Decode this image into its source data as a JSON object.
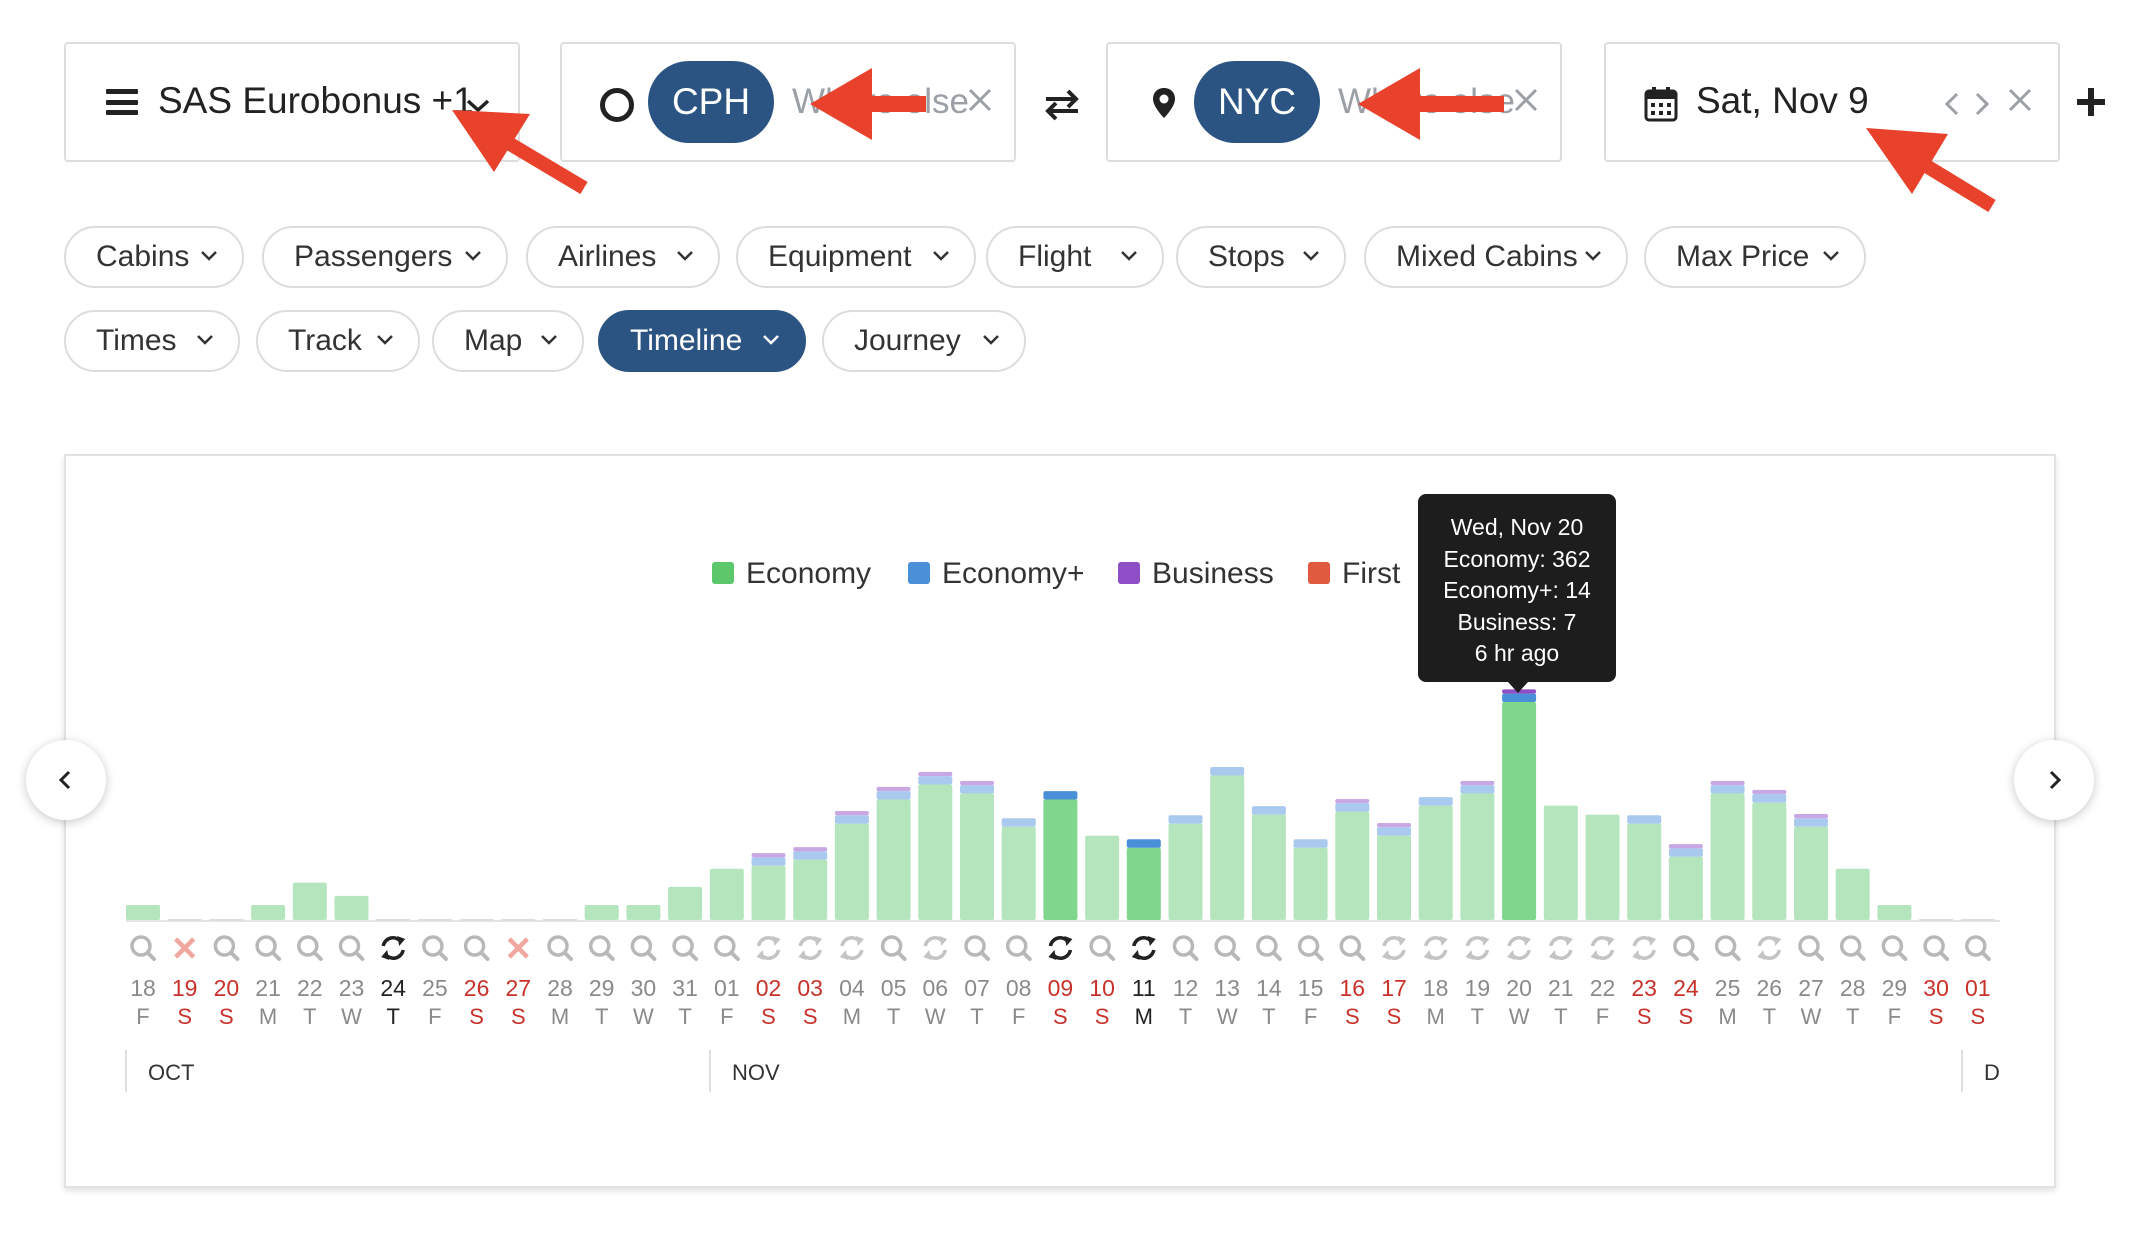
{
  "search_bar": {
    "program_label": "SAS Eurobonus +1",
    "origin_code": "CPH",
    "origin_placeholder": "Where else",
    "destination_code": "NYC",
    "destination_placeholder": "Where else",
    "date_label": "Sat, Nov 9"
  },
  "filters": {
    "row1": [
      "Cabins",
      "Passengers",
      "Airlines",
      "Equipment",
      "Flight",
      "Stops",
      "Mixed Cabins",
      "Max Price"
    ],
    "row2": [
      "Times",
      "Track",
      "Map",
      "Timeline",
      "Journey"
    ],
    "active": "Timeline"
  },
  "colors": {
    "economy": "#5cc86c",
    "economy_plus": "#4a90d9",
    "business": "#8e4fc6",
    "first": "#e05a3f",
    "accent": "#2c5482",
    "weekend": "#c8322b",
    "annotation": "#e8412c"
  },
  "legend": [
    {
      "label": "Economy",
      "color": "#5cc86c"
    },
    {
      "label": "Economy+",
      "color": "#4a90d9"
    },
    {
      "label": "Business",
      "color": "#8e4fc6"
    },
    {
      "label": "First",
      "color": "#e05a3f"
    }
  ],
  "tooltip": {
    "lines": [
      "Wed, Nov 20",
      "Economy: 362",
      "Economy+: 14",
      "Business: 7",
      "6 hr ago"
    ]
  },
  "months": [
    "OCT",
    "NOV",
    "D"
  ],
  "chart_data": {
    "type": "bar",
    "stacked": true,
    "categories": [
      "18",
      "19",
      "20",
      "21",
      "22",
      "23",
      "24",
      "25",
      "26",
      "27",
      "28",
      "29",
      "30",
      "31",
      "01",
      "02",
      "03",
      "04",
      "05",
      "06",
      "07",
      "08",
      "09",
      "10",
      "11",
      "12",
      "13",
      "14",
      "15",
      "16",
      "17",
      "18",
      "19",
      "20",
      "21",
      "22",
      "23",
      "24",
      "25",
      "26",
      "27",
      "28",
      "29",
      "30",
      "01"
    ],
    "weekdays": [
      "F",
      "S",
      "S",
      "M",
      "T",
      "W",
      "T",
      "F",
      "S",
      "S",
      "M",
      "T",
      "W",
      "T",
      "F",
      "S",
      "S",
      "M",
      "T",
      "W",
      "T",
      "F",
      "S",
      "S",
      "M",
      "T",
      "W",
      "T",
      "F",
      "S",
      "S",
      "M",
      "T",
      "W",
      "T",
      "F",
      "S",
      "S",
      "M",
      "T",
      "W",
      "T",
      "F",
      "S",
      "S"
    ],
    "weekend": [
      false,
      true,
      true,
      false,
      false,
      false,
      false,
      false,
      true,
      true,
      false,
      false,
      false,
      false,
      false,
      true,
      true,
      false,
      false,
      false,
      false,
      false,
      true,
      true,
      false,
      false,
      false,
      false,
      false,
      true,
      true,
      false,
      false,
      false,
      false,
      false,
      true,
      true,
      false,
      false,
      false,
      false,
      false,
      true,
      true
    ],
    "status": [
      "search",
      "unavailable",
      "search",
      "search",
      "search",
      "search",
      "refreshing",
      "search",
      "search",
      "unavailable",
      "search",
      "search",
      "search",
      "search",
      "search",
      "refresh",
      "refresh",
      "refresh",
      "search",
      "refresh",
      "search",
      "search",
      "refreshing",
      "search",
      "refreshing",
      "search",
      "search",
      "search",
      "search",
      "search",
      "refresh",
      "refresh",
      "refresh",
      "refresh",
      "refresh",
      "refresh",
      "refresh",
      "search",
      "search",
      "refresh",
      "search",
      "search",
      "search",
      "search",
      "search"
    ],
    "highlighted": [
      "22",
      "09",
      "11",
      "20"
    ],
    "series": [
      {
        "name": "Economy",
        "values": [
          25,
          0,
          0,
          25,
          62,
          40,
          0,
          0,
          0,
          0,
          0,
          25,
          25,
          55,
          85,
          90,
          100,
          160,
          200,
          225,
          210,
          155,
          200,
          140,
          120,
          160,
          240,
          175,
          120,
          180,
          140,
          190,
          210,
          362,
          190,
          175,
          160,
          105,
          210,
          195,
          155,
          85,
          25,
          0,
          0
        ]
      },
      {
        "name": "Economy+",
        "values": [
          0,
          0,
          0,
          0,
          0,
          0,
          0,
          0,
          0,
          0,
          0,
          0,
          0,
          0,
          0,
          14,
          14,
          14,
          14,
          14,
          14,
          14,
          14,
          0,
          14,
          14,
          14,
          14,
          14,
          14,
          14,
          14,
          14,
          14,
          0,
          0,
          14,
          14,
          14,
          14,
          14,
          0,
          0,
          0,
          0
        ]
      },
      {
        "name": "Business",
        "values": [
          0,
          0,
          0,
          0,
          0,
          0,
          0,
          0,
          0,
          0,
          0,
          0,
          0,
          0,
          0,
          7,
          7,
          7,
          7,
          7,
          7,
          0,
          0,
          0,
          0,
          0,
          0,
          0,
          0,
          7,
          7,
          0,
          7,
          7,
          0,
          0,
          0,
          7,
          7,
          7,
          7,
          0,
          0,
          0,
          0
        ]
      },
      {
        "name": "First",
        "values": [
          0,
          0,
          0,
          0,
          0,
          0,
          0,
          0,
          0,
          0,
          0,
          0,
          0,
          0,
          0,
          0,
          0,
          0,
          0,
          0,
          0,
          0,
          0,
          0,
          0,
          0,
          0,
          0,
          0,
          0,
          0,
          0,
          0,
          0,
          0,
          0,
          0,
          0,
          0,
          0,
          0,
          0,
          0,
          0,
          0
        ]
      }
    ],
    "ylim": [
      0,
      400
    ],
    "legend_position": "top"
  }
}
